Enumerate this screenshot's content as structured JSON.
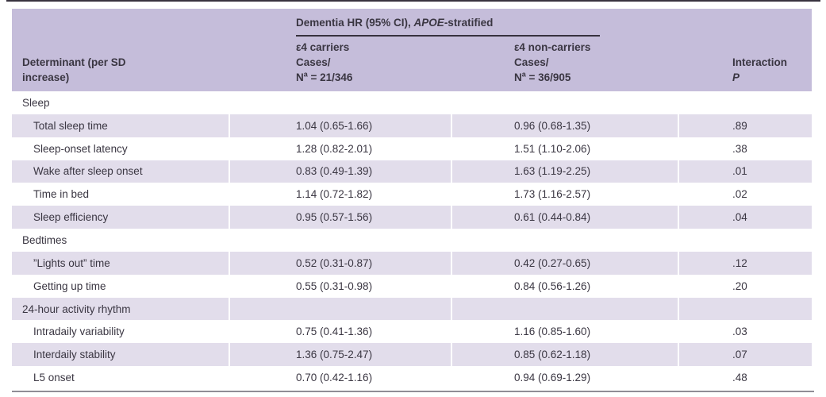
{
  "table": {
    "title": {
      "prefix": "Dementia HR (95% CI), ",
      "italic": "APOE",
      "suffix": "-stratified"
    },
    "columns": {
      "determinant": {
        "line1": "Determinant (per SD",
        "line2": "increase)"
      },
      "carriers": {
        "line1": "ε4 carriers",
        "line2": "Cases/",
        "n_prefix": "N",
        "n_sup": "a",
        "n_rest": " = 21/346"
      },
      "noncarriers": {
        "line1": "ε4 non-carriers",
        "line2": "Cases/",
        "n_prefix": "N",
        "n_sup": "a",
        "n_rest": " = 36/905"
      },
      "interaction": {
        "line1": "Interaction",
        "line2": "P"
      }
    },
    "rows": [
      {
        "type": "section",
        "label": "Sleep",
        "carriers": "",
        "noncarriers": "",
        "p": "",
        "shaded": false
      },
      {
        "type": "data",
        "label": "Total sleep time",
        "carriers": "1.04 (0.65-1.66)",
        "noncarriers": "0.96 (0.68-1.35)",
        "p": ".89",
        "shaded": true
      },
      {
        "type": "data",
        "label": "Sleep-onset latency",
        "carriers": "1.28 (0.82-2.01)",
        "noncarriers": "1.51 (1.10-2.06)",
        "p": ".38",
        "shaded": false
      },
      {
        "type": "data",
        "label": "Wake after sleep onset",
        "carriers": "0.83 (0.49-1.39)",
        "noncarriers": "1.63 (1.19-2.25)",
        "p": ".01",
        "shaded": true
      },
      {
        "type": "data",
        "label": "Time in bed",
        "carriers": "1.14 (0.72-1.82)",
        "noncarriers": "1.73 (1.16-2.57)",
        "p": ".02",
        "shaded": false
      },
      {
        "type": "data",
        "label": "Sleep efficiency",
        "carriers": "0.95 (0.57-1.56)",
        "noncarriers": "0.61 (0.44-0.84)",
        "p": ".04",
        "shaded": true
      },
      {
        "type": "section",
        "label": "Bedtimes",
        "carriers": "",
        "noncarriers": "",
        "p": "",
        "shaded": false
      },
      {
        "type": "data",
        "label": "”Lights out” time",
        "carriers": "0.52 (0.31-0.87)",
        "noncarriers": "0.42 (0.27-0.65)",
        "p": ".12",
        "shaded": true
      },
      {
        "type": "data",
        "label": "Getting up time",
        "carriers": "0.55 (0.31-0.98)",
        "noncarriers": "0.84 (0.56-1.26)",
        "p": ".20",
        "shaded": false
      },
      {
        "type": "section",
        "label": "24-hour activity rhythm",
        "carriers": "",
        "noncarriers": "",
        "p": "",
        "shaded": true
      },
      {
        "type": "data",
        "label": "Intradaily variability",
        "carriers": "0.75 (0.41-1.36)",
        "noncarriers": "1.16 (0.85-1.60)",
        "p": ".03",
        "shaded": false
      },
      {
        "type": "data",
        "label": "Interdaily stability",
        "carriers": "1.36 (0.75-2.47)",
        "noncarriers": "0.85 (0.62-1.18)",
        "p": ".07",
        "shaded": true
      },
      {
        "type": "data",
        "label": "L5 onset",
        "carriers": "0.70 (0.42-1.16)",
        "noncarriers": "0.94 (0.69-1.29)",
        "p": ".48",
        "shaded": false
      }
    ],
    "colors": {
      "header_bg": "#c5bdda",
      "stripe_bg": "#e2ddeb",
      "text": "#3a3642",
      "top_rule": "#37323e",
      "bottom_rule": "#908d96"
    }
  }
}
